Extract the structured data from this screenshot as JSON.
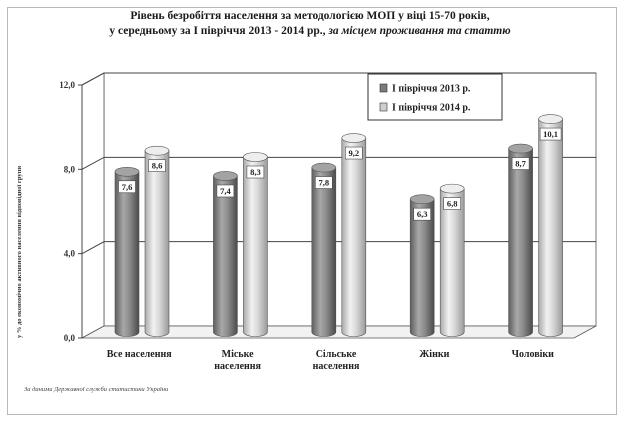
{
  "chart_data": {
    "type": "bar",
    "title_line1": "Рівень безробіття населення  за методологією МОП у віці 15-70 років,",
    "title_line2_prefix": "у середньому за І півріччя 2013 - 2014 рр.,",
    "title_line2_em": "за місцем проживання та статтю",
    "ylabel": "у % до економічно активного населення відповідної групи",
    "source": "За даними Державної служби статистики  України",
    "categories": [
      [
        "Все населення"
      ],
      [
        "Міське",
        "населення"
      ],
      [
        "Сільське",
        "населення"
      ],
      [
        "Жінки"
      ],
      [
        "Чоловіки"
      ]
    ],
    "series": [
      {
        "name": "І півріччя 2013 р.",
        "values": [
          7.6,
          7.4,
          7.8,
          6.3,
          8.7
        ],
        "labels": [
          "7,6",
          "7,4",
          "7,8",
          "6,3",
          "8,7"
        ],
        "color": "#8a8a8a"
      },
      {
        "name": "І півріччя 2014 р.",
        "values": [
          8.6,
          8.3,
          9.2,
          6.8,
          10.1
        ],
        "labels": [
          "8,6",
          "8,3",
          "9,2",
          "6,8",
          "10,1"
        ],
        "color": "#cfcfcf"
      }
    ],
    "ylim": [
      0,
      12
    ],
    "yticks": [
      0,
      4,
      8,
      12
    ],
    "ytick_labels": [
      "0,0",
      "4,0",
      "8,0",
      "12,0"
    ],
    "grid": true,
    "legend_position": "top-right"
  }
}
